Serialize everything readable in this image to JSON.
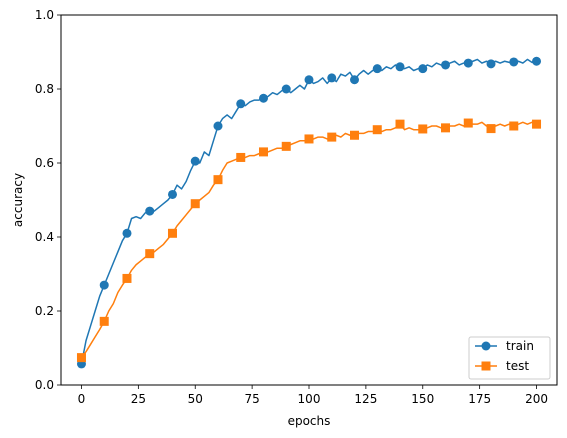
{
  "chart_data": {
    "type": "line",
    "title": "",
    "xlabel": "epochs",
    "ylabel": "accuracy",
    "xlim": [
      -9,
      209
    ],
    "ylim": [
      0.0,
      1.0
    ],
    "xticks": [
      0,
      25,
      50,
      75,
      100,
      125,
      150,
      175,
      200
    ],
    "yticks": [
      0.0,
      0.2,
      0.4,
      0.6,
      0.8,
      1.0
    ],
    "xtick_labels": [
      "0",
      "25",
      "50",
      "75",
      "100",
      "125",
      "150",
      "175",
      "200"
    ],
    "ytick_labels": [
      "0.0",
      "0.2",
      "0.4",
      "0.6",
      "0.8",
      "1.0"
    ],
    "grid": false,
    "legend": "lower-right",
    "marker_every": 10,
    "series": [
      {
        "name": "train",
        "color": "#1f77b4",
        "marker": "circle",
        "x": [
          0,
          2,
          4,
          6,
          8,
          10,
          12,
          14,
          16,
          18,
          20,
          22,
          24,
          26,
          28,
          30,
          32,
          34,
          36,
          38,
          40,
          42,
          44,
          46,
          48,
          50,
          52,
          54,
          56,
          58,
          60,
          62,
          64,
          66,
          68,
          70,
          72,
          74,
          76,
          78,
          80,
          82,
          84,
          86,
          88,
          90,
          92,
          94,
          96,
          98,
          100,
          102,
          104,
          106,
          108,
          110,
          112,
          114,
          116,
          118,
          120,
          122,
          124,
          126,
          128,
          130,
          132,
          134,
          136,
          138,
          140,
          142,
          144,
          146,
          148,
          150,
          152,
          154,
          156,
          158,
          160,
          162,
          164,
          166,
          168,
          170,
          172,
          174,
          176,
          178,
          180,
          182,
          184,
          186,
          188,
          190,
          192,
          194,
          196,
          198,
          200
        ],
        "y": [
          0.057,
          0.12,
          0.16,
          0.2,
          0.24,
          0.27,
          0.3,
          0.33,
          0.36,
          0.39,
          0.41,
          0.45,
          0.455,
          0.45,
          0.465,
          0.47,
          0.47,
          0.48,
          0.49,
          0.5,
          0.515,
          0.54,
          0.53,
          0.55,
          0.58,
          0.605,
          0.6,
          0.63,
          0.62,
          0.66,
          0.7,
          0.72,
          0.73,
          0.72,
          0.74,
          0.76,
          0.755,
          0.765,
          0.77,
          0.77,
          0.775,
          0.78,
          0.79,
          0.785,
          0.795,
          0.8,
          0.79,
          0.8,
          0.81,
          0.8,
          0.825,
          0.815,
          0.82,
          0.83,
          0.815,
          0.83,
          0.82,
          0.84,
          0.835,
          0.845,
          0.825,
          0.84,
          0.85,
          0.84,
          0.85,
          0.855,
          0.85,
          0.86,
          0.855,
          0.865,
          0.86,
          0.855,
          0.86,
          0.85,
          0.855,
          0.855,
          0.865,
          0.86,
          0.87,
          0.865,
          0.865,
          0.87,
          0.875,
          0.865,
          0.87,
          0.87,
          0.875,
          0.88,
          0.87,
          0.875,
          0.868,
          0.875,
          0.87,
          0.875,
          0.872,
          0.873,
          0.875,
          0.87,
          0.88,
          0.872,
          0.875
        ]
      },
      {
        "name": "test",
        "color": "#ff7f0e",
        "marker": "square",
        "x": [
          0,
          2,
          4,
          6,
          8,
          10,
          12,
          14,
          16,
          18,
          20,
          22,
          24,
          26,
          28,
          30,
          32,
          34,
          36,
          38,
          40,
          42,
          44,
          46,
          48,
          50,
          52,
          54,
          56,
          58,
          60,
          62,
          64,
          66,
          68,
          70,
          72,
          74,
          76,
          78,
          80,
          82,
          84,
          86,
          88,
          90,
          92,
          94,
          96,
          98,
          100,
          102,
          104,
          106,
          108,
          110,
          112,
          114,
          116,
          118,
          120,
          122,
          124,
          126,
          128,
          130,
          132,
          134,
          136,
          138,
          140,
          142,
          144,
          146,
          148,
          150,
          152,
          154,
          156,
          158,
          160,
          162,
          164,
          166,
          168,
          170,
          172,
          174,
          176,
          178,
          180,
          182,
          184,
          186,
          188,
          190,
          192,
          194,
          196,
          198,
          200
        ],
        "y": [
          0.074,
          0.09,
          0.11,
          0.13,
          0.15,
          0.172,
          0.2,
          0.22,
          0.25,
          0.27,
          0.288,
          0.31,
          0.325,
          0.335,
          0.345,
          0.355,
          0.36,
          0.37,
          0.38,
          0.395,
          0.41,
          0.43,
          0.445,
          0.46,
          0.475,
          0.49,
          0.5,
          0.51,
          0.52,
          0.54,
          0.555,
          0.58,
          0.6,
          0.605,
          0.61,
          0.615,
          0.615,
          0.62,
          0.62,
          0.625,
          0.63,
          0.63,
          0.635,
          0.64,
          0.64,
          0.645,
          0.65,
          0.655,
          0.66,
          0.66,
          0.665,
          0.665,
          0.67,
          0.67,
          0.665,
          0.67,
          0.675,
          0.67,
          0.68,
          0.675,
          0.675,
          0.68,
          0.68,
          0.685,
          0.685,
          0.69,
          0.685,
          0.69,
          0.69,
          0.695,
          0.705,
          0.69,
          0.695,
          0.69,
          0.69,
          0.692,
          0.695,
          0.7,
          0.7,
          0.695,
          0.695,
          0.7,
          0.7,
          0.705,
          0.7,
          0.708,
          0.705,
          0.705,
          0.71,
          0.7,
          0.693,
          0.7,
          0.705,
          0.7,
          0.705,
          0.7,
          0.705,
          0.71,
          0.705,
          0.71,
          0.705
        ]
      }
    ]
  }
}
